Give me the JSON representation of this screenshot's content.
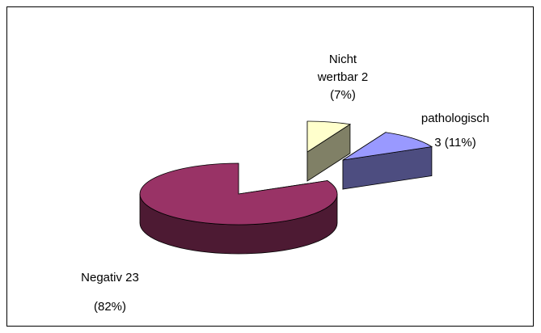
{
  "chart_data": {
    "type": "pie3d",
    "categories": [
      "Nicht wertbar",
      "pathologisch",
      "Negativ"
    ],
    "values": [
      2,
      3,
      23
    ],
    "value_labels": [
      "2 (7%)",
      "3 (11%)",
      "23 (82%)"
    ],
    "colors": [
      "#ffffcc",
      "#9999ff",
      "#993366"
    ],
    "side_colors": [
      "#808066",
      "#4d4d80",
      "#4d1a33"
    ]
  }
}
